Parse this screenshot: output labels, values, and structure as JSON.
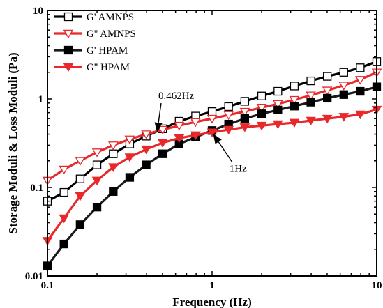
{
  "chart_data": {
    "type": "line",
    "xlabel": "Frequency (Hz)",
    "ylabel": "Storage  Moduli & Loss Moduli (Pa)",
    "xscale": "log",
    "yscale": "log",
    "xlim": [
      0.1,
      10
    ],
    "ylim": [
      0.01,
      10
    ],
    "x_ticks": [
      "0.1",
      "1",
      "10"
    ],
    "y_ticks": [
      "0.01",
      "0.1",
      "1",
      "10"
    ],
    "legend_position": "top-left",
    "x": [
      0.1,
      0.126,
      0.158,
      0.2,
      0.251,
      0.316,
      0.398,
      0.501,
      0.631,
      0.794,
      1.0,
      1.26,
      1.58,
      2.0,
      2.51,
      3.16,
      3.98,
      5.01,
      6.31,
      7.94,
      10.0
    ],
    "series": [
      {
        "name": "G' AMNPS",
        "color": "#000000",
        "line_color": "#000000",
        "marker": "square-open",
        "values": [
          0.07,
          0.088,
          0.125,
          0.18,
          0.24,
          0.31,
          0.38,
          0.46,
          0.56,
          0.64,
          0.72,
          0.82,
          0.94,
          1.08,
          1.22,
          1.4,
          1.6,
          1.8,
          2.0,
          2.25,
          2.65
        ]
      },
      {
        "name": "G'' AMNPS",
        "color": "#e8282b",
        "line_color": "#e8282b",
        "marker": "triangle-down-open",
        "values": [
          0.12,
          0.16,
          0.2,
          0.25,
          0.3,
          0.35,
          0.4,
          0.45,
          0.5,
          0.55,
          0.6,
          0.66,
          0.72,
          0.8,
          0.88,
          0.98,
          1.1,
          1.25,
          1.42,
          1.65,
          2.0
        ]
      },
      {
        "name": "G' HPAM",
        "color": "#000000",
        "line_color": "#1a1a1a",
        "marker": "square-filled",
        "values": [
          0.013,
          0.023,
          0.038,
          0.06,
          0.09,
          0.13,
          0.18,
          0.24,
          0.31,
          0.37,
          0.44,
          0.52,
          0.6,
          0.68,
          0.75,
          0.83,
          0.92,
          1.02,
          1.12,
          1.22,
          1.37
        ]
      },
      {
        "name": "G'' HPAM",
        "color": "#e8282b",
        "line_color": "#e8282b",
        "marker": "triangle-down-filled",
        "values": [
          0.025,
          0.045,
          0.08,
          0.12,
          0.17,
          0.22,
          0.27,
          0.32,
          0.36,
          0.39,
          0.42,
          0.45,
          0.48,
          0.5,
          0.52,
          0.54,
          0.57,
          0.6,
          0.63,
          0.67,
          0.76
        ]
      }
    ],
    "annotations": [
      {
        "text": "0.462Hz",
        "x": 0.462,
        "y": 0.4,
        "label_at": {
          "x": 0.5,
          "y": 1.0
        }
      },
      {
        "text": "1Hz",
        "x": 1.0,
        "y": 0.42,
        "label_at": {
          "x": 1.35,
          "y": 0.15
        }
      }
    ]
  }
}
